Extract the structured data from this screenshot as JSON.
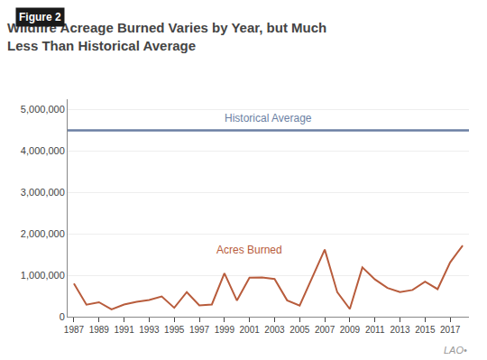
{
  "chart_data": {
    "type": "line",
    "title": "Wildfire Acreage Burned Varies by Year, but Much\nLess Than Historical Average",
    "x": [
      1987,
      1988,
      1989,
      1990,
      1991,
      1992,
      1993,
      1994,
      1995,
      1996,
      1997,
      1998,
      1999,
      2000,
      2001,
      2002,
      2003,
      2004,
      2005,
      2006,
      2007,
      2008,
      2009,
      2010,
      2011,
      2012,
      2013,
      2014,
      2015,
      2016,
      2017,
      2018
    ],
    "series": [
      {
        "name": "Acres Burned",
        "color": "#b85c3c",
        "values": [
          800000,
          290000,
          350000,
          175000,
          295000,
          360000,
          405000,
          490000,
          215000,
          595000,
          275000,
          295000,
          1050000,
          390000,
          940000,
          950000,
          910000,
          395000,
          270000,
          940000,
          1620000,
          590000,
          185000,
          1190000,
          900000,
          695000,
          595000,
          645000,
          845000,
          665000,
          1310000,
          1720000
        ]
      }
    ],
    "reference_line": {
      "name": "Historical Average",
      "value": 4500000,
      "color": "#6b7fa3"
    },
    "annotations": [
      "Figure 2",
      "LAO•"
    ],
    "xlim": [
      1986.5,
      2018.5
    ],
    "xticks": [
      1987,
      1989,
      1991,
      1993,
      1995,
      1997,
      1999,
      2001,
      2003,
      2005,
      2007,
      2009,
      2011,
      2013,
      2015,
      2017
    ],
    "ylim": [
      0,
      5250000
    ],
    "yticks": [
      0,
      {
        "value": 1000000,
        "label": "1,000,000"
      },
      {
        "value": 2000000,
        "label": "2,000,000"
      },
      {
        "value": 3000000,
        "label": "3,000,000"
      },
      {
        "value": 4000000,
        "label": "4,000,000"
      },
      {
        "value": 5000000,
        "label": "5,000,000"
      }
    ],
    "grid": "y"
  }
}
